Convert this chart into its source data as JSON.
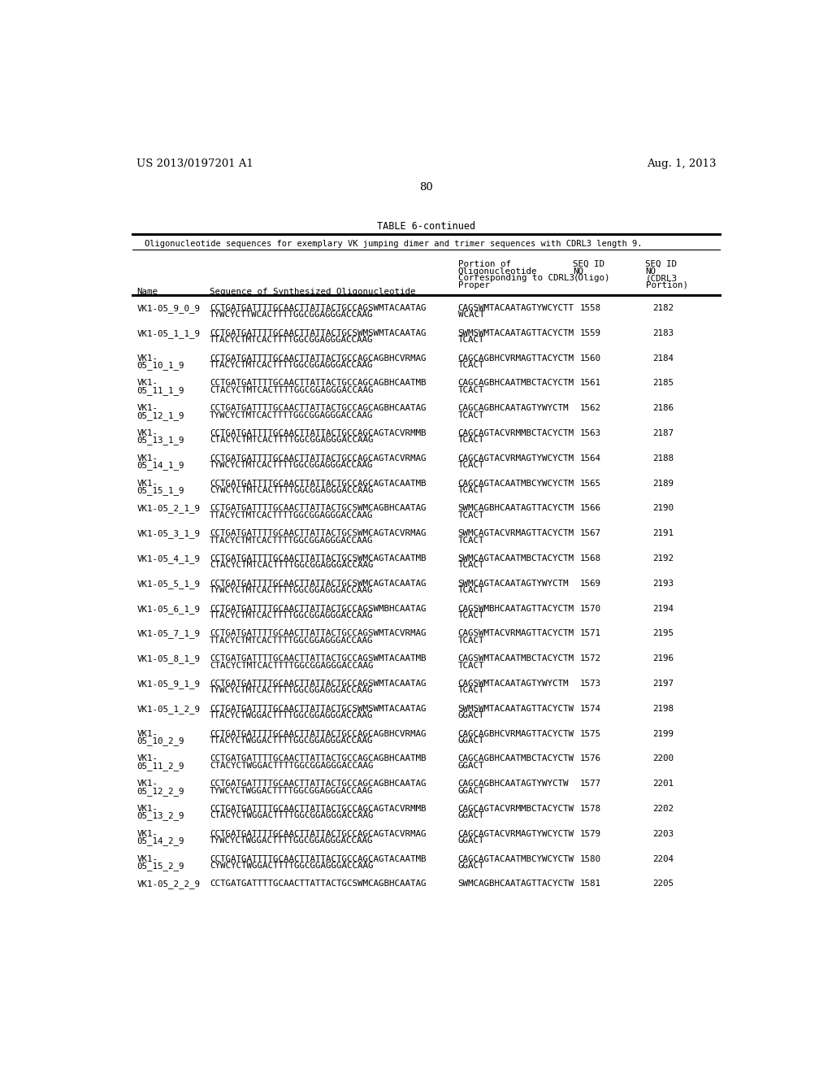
{
  "page_header_left": "US 2013/0197201 A1",
  "page_header_right": "Aug. 1, 2013",
  "page_number": "80",
  "table_title": "TABLE 6-continued",
  "table_subtitle": "Oligonucleotide sequences for exemplary VK jumping dimer and trimer sequences with CDRL3 length 9.",
  "rows": [
    [
      "VK1-05_9_0_9",
      "CCTGATGATTTTGCAACTTATTACTGCCAGSWMTACAATAG",
      "TYWCYCTTWCACTTTTGGCGGAGGGACCAAG",
      "CAGSWMTACAATAGTYWCYCTT",
      "WCACT",
      "1558",
      "2182"
    ],
    [
      "VK1-05_1_1_9",
      "CCTGATGATTTTGCAACTTATTACTGCSWMSWMTACAATAG",
      "TTACYCTMTCACTTTTGGCGGAGGGACCAAG",
      "SWMSWMTACAATAGTTACYCTM",
      "TCACT",
      "1559",
      "2183"
    ],
    [
      "VK1-",
      "CCTGATGATTTTGCAACTTATTACTGCCAGCAGBHCVRMAG",
      "TTACYCTMTCACTTTTGGCGGAGGGACCAAG",
      "CAGCAGBHCVRMAGTTACYCTM",
      "TCACT",
      "1560",
      "2184"
    ],
    [
      "VK1-",
      "CCTGATGATTTTGCAACTTATTACTGCCAGCAGBHCAATMB",
      "CTACYCTMTCACTTTTGGCGGAGGGACCAAG",
      "CAGCAGBHCAATMBCTACYCTM",
      "TCACT",
      "1561",
      "2185"
    ],
    [
      "VK1-",
      "CCTGATGATTTTGCAACTTATTACTGCCAGCAGBHCAATAG",
      "TYWCYCTMTCACTTTTGGCGGAGGGACCAAG",
      "CAGCAGBHCAATAGTYWYCTM",
      "TCACT",
      "1562",
      "2186"
    ],
    [
      "VK1-",
      "CCTGATGATTTTGCAACTTATTACTGCCAGCAGTACVRMMB",
      "CTACYCTMTCACTTTTGGCGGAGGGACCAAG",
      "CAGCAGTACVRMMBCTACYCTM",
      "TCACT",
      "1563",
      "2187"
    ],
    [
      "VK1-",
      "CCTGATGATTTTGCAACTTATTACTGCCAGCAGTACVRMAG",
      "TYWCYCTMTCACTTTTGGCGGAGGGACCAAG",
      "CAGCAGTACVRMAGTYWCYCTM",
      "TCACT",
      "1564",
      "2188"
    ],
    [
      "VK1-",
      "CCTGATGATTTTGCAACTTATTACTGCCAGCAGTACAATMB",
      "CYWCYCTMTCACTTTTGGCGGAGGGACCAAG",
      "CAGCAGTACAATMBCYWCYCTM",
      "TCACT",
      "1565",
      "2189"
    ],
    [
      "VK1-05_2_1_9",
      "CCTGATGATTTTGCAACTTATTACTGCSWMCAGBHCAATAG",
      "TTACYCTMTCACTTTTGGCGGAGGGACCAAG",
      "SWMCAGBHCAATAGTTACYCTM",
      "TCACT",
      "1566",
      "2190"
    ],
    [
      "VK1-05_3_1_9",
      "CCTGATGATTTTGCAACTTATTACTGCSWMCAGTACVRMAG",
      "TTACYCTMTCACTTTTGGCGGAGGGACCAAG",
      "SWMCAGTACVRMAGTTACYCTM",
      "TCACT",
      "1567",
      "2191"
    ],
    [
      "VK1-05_4_1_9",
      "CCTGATGATTTTGCAACTTATTACTGCSWMCAGTACAATMB",
      "CTACYCTMTCACTTTTGGCGGAGGGACCAAG",
      "SWMCAGTACAATMBCTACYCTM",
      "TCACT",
      "1568",
      "2192"
    ],
    [
      "VK1-05_5_1_9",
      "CCTGATGATTTTGCAACTTATTACTGCSWMCAGTACAATAG",
      "TYWCYCTMTCACTTTTGGCGGAGGGACCAAG",
      "SWMCAGTACAATAGTYWYCTM",
      "TCACT",
      "1569",
      "2193"
    ],
    [
      "VK1-05_6_1_9",
      "CCTGATGATTTTGCAACTTATTACTGCCAGSWMBHCAATAG",
      "TTACYCTMTCACTTTTGGCGGAGGGACCAAG",
      "CAGSWMBHCAATAGTTACYCTM",
      "TCACT",
      "1570",
      "2194"
    ],
    [
      "VK1-05_7_1_9",
      "CCTGATGATTTTGCAACTTATTACTGCCAGSWMTACVRMAG",
      "TTACYCTMTCACTTTTGGCGGAGGGACCAAG",
      "CAGSWMTACVRMAGTTACYCTM",
      "TCACT",
      "1571",
      "2195"
    ],
    [
      "VK1-05_8_1_9",
      "CCTGATGATTTTGCAACTTATTACTGCCAGSWMTACAATMB",
      "CTACYCTMTCACTTTTGGCGGAGGGACCAAG",
      "CAGSWMTACAATMBCTACYCTM",
      "TCACT",
      "1572",
      "2196"
    ],
    [
      "VK1-05_9_1_9",
      "CCTGATGATTTTGCAACTTATTACTGCCAGSWMTACAATAG",
      "TYWCYCTMTCACTTTTGGCGGAGGGACCAAG",
      "CAGSWMTACAATAGTYWYCTM",
      "TCACT",
      "1573",
      "2197"
    ],
    [
      "VK1-05_1_2_9",
      "CCTGATGATTTTGCAACTTATTACTGCSWMSWMTACAATAG",
      "TTACYCTWGGACTTTTGGCGGAGGGACCAAG",
      "SWMSWMTACAATAGTTACYCTW",
      "GGACT",
      "1574",
      "2198"
    ],
    [
      "VK1-",
      "CCTGATGATTTTGCAACTTATTACTGCCAGCAGBHCVRMAG",
      "TTACYCTWGGACTTTTGGCGGAGGGACCAAG",
      "CAGCAGBHCVRMAGTTACYCTW",
      "GGACT",
      "1575",
      "2199"
    ],
    [
      "VK1-",
      "CCTGATGATTTTGCAACTTATTACTGCCAGCAGBHCAATMB",
      "CTACYCTWGGACTTTTGGCGGAGGGACCAAG",
      "CAGCAGBHCAATMBCTACYCTW",
      "GGACT",
      "1576",
      "2200"
    ],
    [
      "VK1-",
      "CCTGATGATTTTGCAACTTATTACTGCCAGCAGBHCAATAG",
      "TYWCYCTWGGACTTTTGGCGGAGGGACCAAG",
      "CAGCAGBHCAATAGTYWYCTW",
      "GGACT",
      "1577",
      "2201"
    ],
    [
      "VK1-",
      "CCTGATGATTTTGCAACTTATTACTGCCAGCAGTACVRMMB",
      "CTACYCTWGGACTTTTGGCGGAGGGACCAAG",
      "CAGCAGTACVRMMBCTACYCTW",
      "GGACT",
      "1578",
      "2202"
    ],
    [
      "VK1-",
      "CCTGATGATTTTGCAACTTATTACTGCCAGCAGTACVRMAG",
      "TYWCYCTWGGACTTTTGGCGGAGGGACCAAG",
      "CAGCAGTACVRMAGTYWCYCTW",
      "GGACT",
      "1579",
      "2203"
    ],
    [
      "VK1-",
      "CCTGATGATTTTGCAACTTATTACTGCCAGCAGTACAATMB",
      "CYWCYCTWGGACTTTTGGCGGAGGGACCAAG",
      "CAGCAGTACAATMBCYWCYCTW",
      "GGACT",
      "1580",
      "2204"
    ],
    [
      "VK1-05_2_2_9",
      "CCTGATGATTTTGCAACTTATTACTGCSWMCAGBHCAATAG",
      "",
      "SWMCAGBHCAATAGTTACYCTW",
      "",
      "1581",
      "2205"
    ]
  ],
  "row_name2": [
    "",
    "",
    "05_10_1_9",
    "05_11_1_9",
    "05_12_1_9",
    "05_13_1_9",
    "05_14_1_9",
    "05_15_1_9",
    "",
    "",
    "",
    "",
    "",
    "",
    "",
    "",
    "",
    "05_10_2_9",
    "05_11_2_9",
    "05_12_2_9",
    "05_13_2_9",
    "05_14_2_9",
    "05_15_2_9",
    ""
  ],
  "bg_color": "#ffffff",
  "text_color": "#000000"
}
